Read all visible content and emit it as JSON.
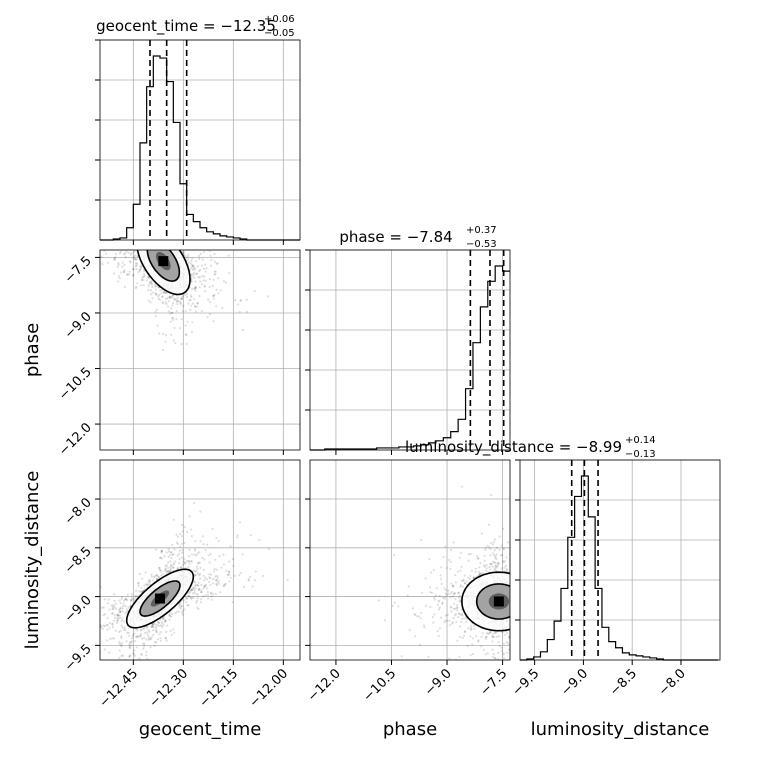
{
  "chart_data": {
    "type": "corner",
    "parameters": [
      {
        "name": "geocent_time",
        "axis_label": "geocent_time",
        "range": [
          -12.55,
          -11.95
        ],
        "ticks": [
          -12.45,
          -12.3,
          -12.15,
          -12.0
        ],
        "tick_labels": [
          "−12.45",
          "−12.30",
          "−12.15",
          "−12.00"
        ],
        "median": -12.35,
        "quantiles": [
          -12.4,
          -12.35,
          -12.29
        ],
        "title_main": "geocent_time = −12.35",
        "title_plus": "+0.06",
        "title_minus": "−0.05",
        "hist": {
          "bin_edges": [
            -12.55,
            -12.53,
            -12.51,
            -12.49,
            -12.47,
            -12.45,
            -12.43,
            -12.41,
            -12.39,
            -12.37,
            -12.35,
            -12.33,
            -12.31,
            -12.29,
            -12.27,
            -12.25,
            -12.23,
            -12.21,
            -12.19,
            -12.17,
            -12.15,
            -12.13,
            -12.11,
            -12.09,
            -12.07,
            -12.05,
            -12.03,
            -12.01,
            -11.99,
            -11.97,
            -11.95
          ],
          "counts": [
            0,
            0,
            1,
            2,
            12,
            35,
            95,
            150,
            180,
            178,
            155,
            115,
            55,
            25,
            18,
            12,
            8,
            6,
            4,
            3,
            2,
            1,
            0,
            0,
            0,
            0,
            0,
            0,
            0,
            0
          ]
        }
      },
      {
        "name": "phase",
        "axis_label": "phase",
        "range": [
          -12.7,
          -7.3
        ],
        "ticks": [
          -12.0,
          -10.5,
          -9.0,
          -7.5
        ],
        "tick_labels": [
          "−12.0",
          "−10.5",
          "−9.0",
          "−7.5"
        ],
        "median": -7.84,
        "quantiles": [
          -8.37,
          -7.84,
          -7.47
        ],
        "title_main": "phase = −7.84",
        "title_plus": "+0.37",
        "title_minus": "−0.53",
        "hist": {
          "bin_edges": [
            -12.7,
            -12.5,
            -12.3,
            -12.1,
            -11.9,
            -11.7,
            -11.5,
            -11.3,
            -11.1,
            -10.9,
            -10.7,
            -10.5,
            -10.3,
            -10.1,
            -9.9,
            -9.7,
            -9.5,
            -9.3,
            -9.1,
            -8.9,
            -8.7,
            -8.5,
            -8.3,
            -8.1,
            -7.9,
            -7.7,
            -7.5,
            -7.3
          ],
          "counts": [
            0,
            0,
            1,
            1,
            1,
            1,
            1,
            1,
            1,
            2,
            2,
            2,
            3,
            3,
            4,
            5,
            7,
            9,
            12,
            18,
            30,
            60,
            105,
            140,
            165,
            180,
            175
          ]
        }
      },
      {
        "name": "luminosity_distance",
        "axis_label": "luminosity_distance",
        "range": [
          -9.65,
          -7.6
        ],
        "ticks": [
          -9.5,
          -9.0,
          -8.5,
          -8.0
        ],
        "tick_labels": [
          "−9.5",
          "−9.0",
          "−8.5",
          "−8.0"
        ],
        "median": -8.99,
        "quantiles": [
          -9.12,
          -8.99,
          -8.85
        ],
        "title_main": "luminosity_distance = −8.99",
        "title_plus": "+0.14",
        "title_minus": "−0.13",
        "hist": {
          "bin_edges": [
            -9.65,
            -9.58,
            -9.51,
            -9.44,
            -9.37,
            -9.3,
            -9.23,
            -9.16,
            -9.09,
            -9.02,
            -8.95,
            -8.88,
            -8.81,
            -8.74,
            -8.67,
            -8.6,
            -8.53,
            -8.46,
            -8.39,
            -8.32,
            -8.25,
            -8.18,
            -8.11,
            -8.04,
            -7.97,
            -7.9,
            -7.83,
            -7.76,
            -7.69,
            -7.62
          ],
          "counts": [
            0,
            1,
            3,
            8,
            20,
            38,
            70,
            120,
            160,
            180,
            140,
            70,
            32,
            18,
            12,
            7,
            5,
            4,
            3,
            2,
            1,
            0,
            0,
            0,
            0,
            0,
            0,
            0,
            0
          ]
        }
      }
    ],
    "pairs": [
      {
        "x": "geocent_time",
        "y": "phase",
        "peak": [
          -12.36,
          -7.6
        ],
        "spread": [
          0.04,
          0.45
        ],
        "correlation": -0.55
      },
      {
        "x": "geocent_time",
        "y": "luminosity_distance",
        "peak": [
          -12.37,
          -9.02
        ],
        "spread": [
          0.05,
          0.15
        ],
        "correlation": 0.75
      },
      {
        "x": "phase",
        "y": "luminosity_distance",
        "peak": [
          -7.6,
          -9.05
        ],
        "spread": [
          0.5,
          0.15
        ],
        "correlation": 0.0
      }
    ],
    "grid": true,
    "legend": "none"
  }
}
